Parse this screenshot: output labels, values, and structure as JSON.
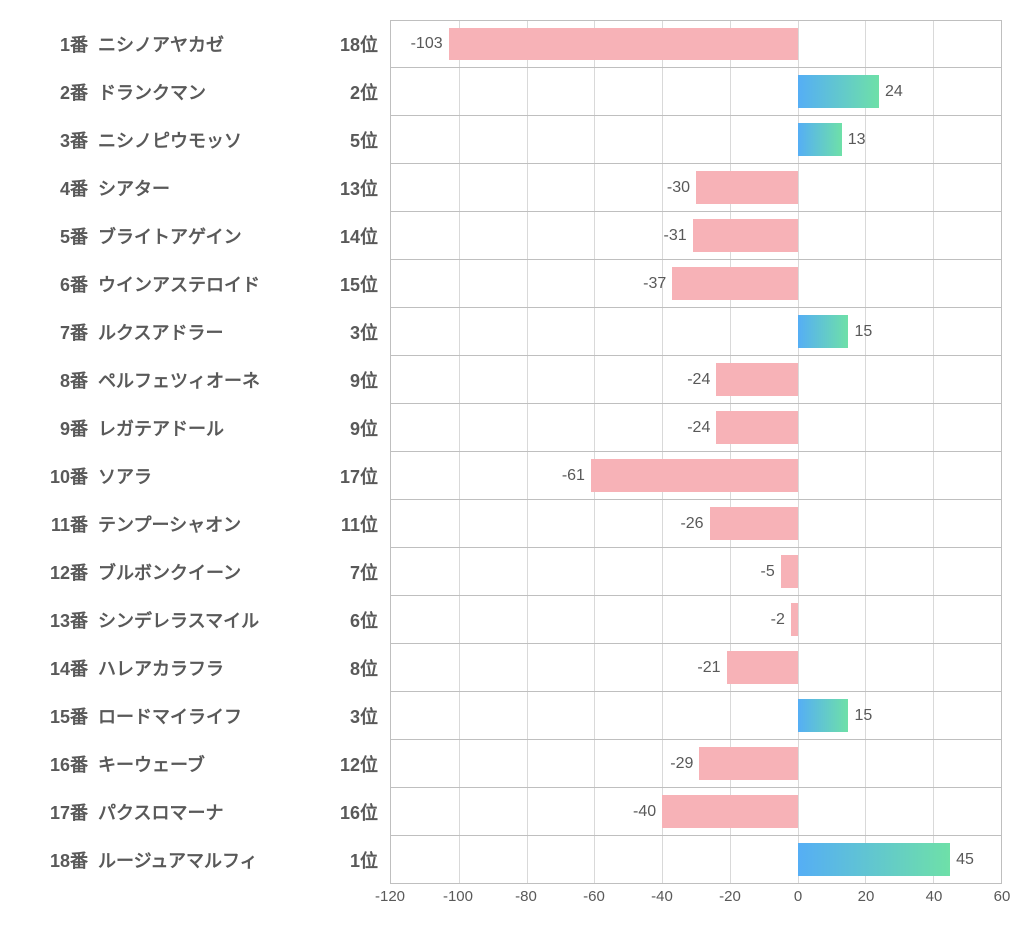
{
  "chart": {
    "type": "bar",
    "xlim": [
      -120,
      60
    ],
    "xtick_step": 20,
    "xticks": [
      -120,
      -100,
      -80,
      -60,
      -40,
      -20,
      0,
      20,
      40,
      60
    ],
    "grid_color": "#d9d9d9",
    "border_color": "#bfbfbf",
    "background_color": "#ffffff",
    "text_color": "#595959",
    "neg_bar_color": "#f7b2b7",
    "pos_bar_gradient": [
      "#55aef5",
      "#6ee0a8"
    ],
    "label_fontsize": 18,
    "tick_fontsize": 15,
    "value_fontsize": 16,
    "rows": [
      {
        "num": "1番",
        "name": "ニシノアヤカゼ",
        "rank": "18位",
        "value": -103
      },
      {
        "num": "2番",
        "name": "ドランクマン",
        "rank": "2位",
        "value": 24
      },
      {
        "num": "3番",
        "name": "ニシノピウモッソ",
        "rank": "5位",
        "value": 13
      },
      {
        "num": "4番",
        "name": "シアター",
        "rank": "13位",
        "value": -30
      },
      {
        "num": "5番",
        "name": "ブライトアゲイン",
        "rank": "14位",
        "value": -31
      },
      {
        "num": "6番",
        "name": "ウインアステロイド",
        "rank": "15位",
        "value": -37
      },
      {
        "num": "7番",
        "name": "ルクスアドラー",
        "rank": "3位",
        "value": 15
      },
      {
        "num": "8番",
        "name": "ペルフェツィオーネ",
        "rank": "9位",
        "value": -24
      },
      {
        "num": "9番",
        "name": "レガテアドール",
        "rank": "9位",
        "value": -24
      },
      {
        "num": "10番",
        "name": "ソアラ",
        "rank": "17位",
        "value": -61
      },
      {
        "num": "11番",
        "name": "テンプーシャオン",
        "rank": "11位",
        "value": -26
      },
      {
        "num": "12番",
        "name": "ブルボンクイーン",
        "rank": "7位",
        "value": -5
      },
      {
        "num": "13番",
        "name": "シンデレラスマイル",
        "rank": "6位",
        "value": -2
      },
      {
        "num": "14番",
        "name": "ハレアカラフラ",
        "rank": "8位",
        "value": -21
      },
      {
        "num": "15番",
        "name": "ロードマイライフ",
        "rank": "3位",
        "value": 15
      },
      {
        "num": "16番",
        "name": "キーウェーブ",
        "rank": "12位",
        "value": -29
      },
      {
        "num": "17番",
        "name": "パクスロマーナ",
        "rank": "16位",
        "value": -40
      },
      {
        "num": "18番",
        "name": "ルージュアマルフィ",
        "rank": "1位",
        "value": 45
      }
    ]
  }
}
